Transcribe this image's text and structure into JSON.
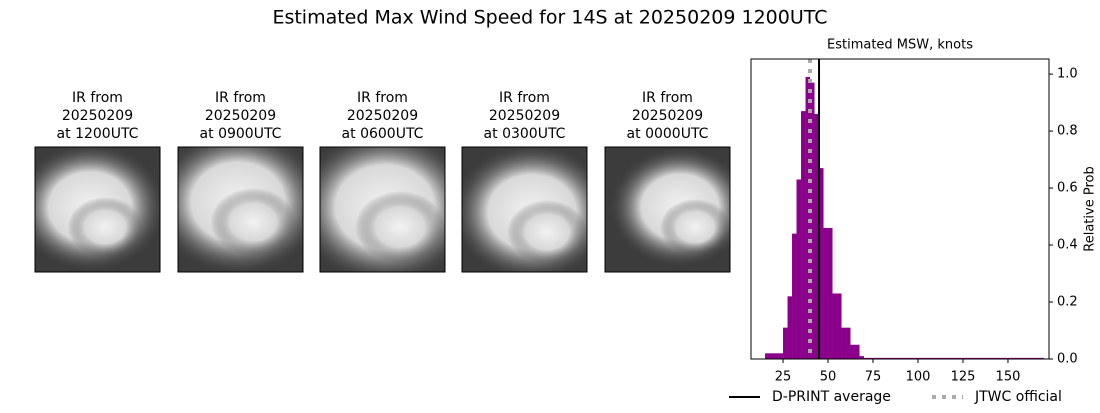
{
  "title": "Estimated Max Wind Speed for 14S at 20250209 1200UTC",
  "panels": [
    {
      "lines": [
        "IR from",
        "20250209",
        "at 1200UTC"
      ]
    },
    {
      "lines": [
        "IR from",
        "20250209",
        "at 0900UTC"
      ]
    },
    {
      "lines": [
        "IR from",
        "20250209",
        "at 0600UTC"
      ]
    },
    {
      "lines": [
        "IR from",
        "20250209",
        "at 0300UTC"
      ]
    },
    {
      "lines": [
        "IR from",
        "20250209",
        "at 0000UTC"
      ]
    }
  ],
  "chart_data": {
    "type": "histogram",
    "title": "Estimated MSW, knots",
    "y_label": "Relative Prob",
    "color": "#8b008b",
    "bins": [
      15,
      17.5,
      20,
      22.5,
      25,
      27.5,
      30,
      32.5,
      35,
      37.5,
      40,
      42.5,
      45,
      47.5,
      50,
      52.5,
      55,
      57.5,
      60,
      62.5,
      65,
      67.5,
      70,
      170
    ],
    "values": [
      0.02,
      0.02,
      0.02,
      0.02,
      0.11,
      0.22,
      0.44,
      0.63,
      0.87,
      0.99,
      0.97,
      0.86,
      0.67,
      0.46,
      0.46,
      0.23,
      0.23,
      0.11,
      0.11,
      0.05,
      0.05,
      0.01,
      0.004
    ],
    "xlim": [
      7.2,
      172.8
    ],
    "ylim": [
      0,
      1.053
    ],
    "xticks": [
      25,
      50,
      75,
      100,
      125,
      150
    ],
    "yticks": [
      {
        "value": 0,
        "label": "0.0"
      },
      {
        "value": 0.2,
        "label": "0.2"
      },
      {
        "value": 0.4,
        "label": "0.4"
      },
      {
        "value": 0.6,
        "label": "0.6"
      },
      {
        "value": 0.8,
        "label": "0.8"
      },
      {
        "value": 1.0,
        "label": "1.0"
      }
    ],
    "dprint_average": {
      "name": "D-PRINT average",
      "value": 45,
      "color": "#000000"
    },
    "jtwc_official": {
      "name": "JTWC official",
      "value": 40,
      "color": "#aaaaaa"
    }
  }
}
